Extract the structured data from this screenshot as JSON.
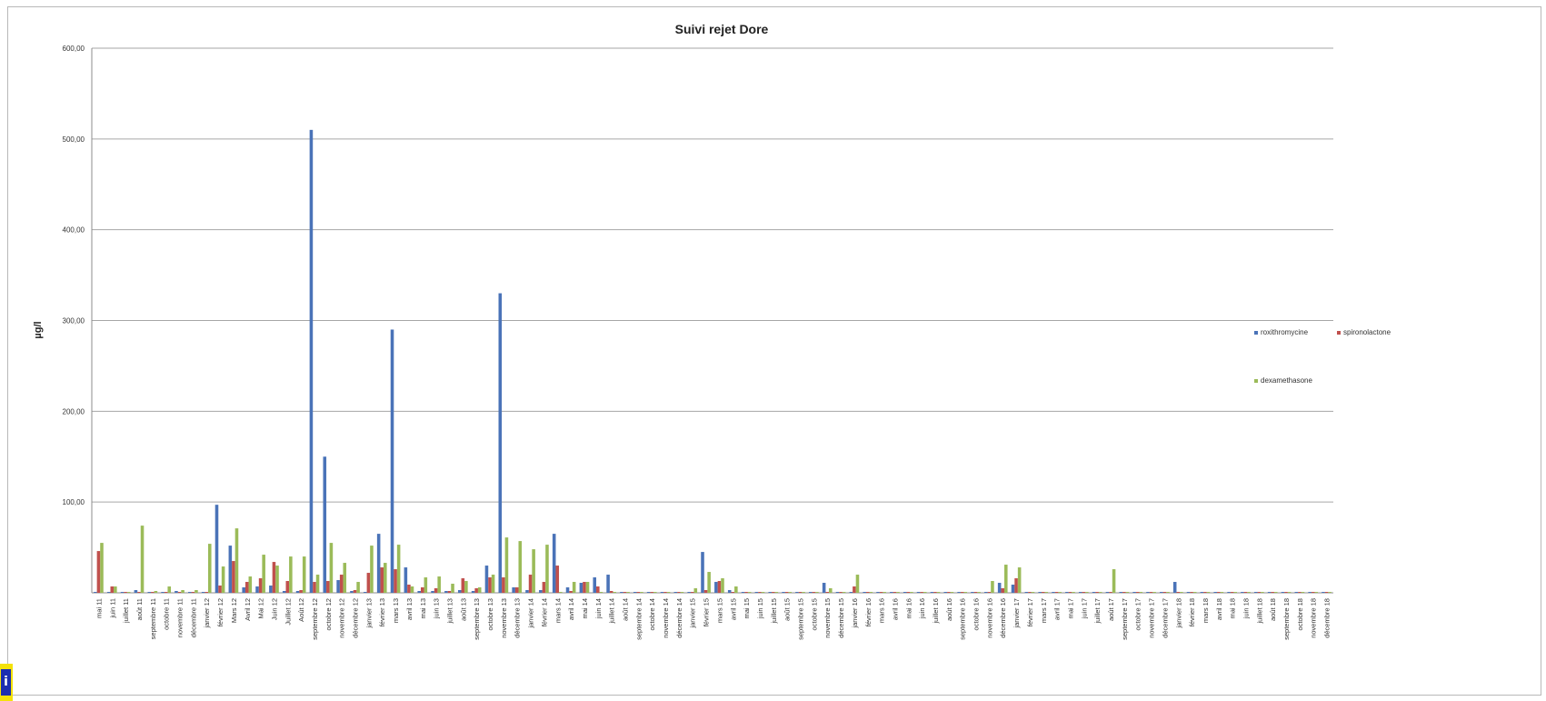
{
  "chart_data": {
    "type": "bar",
    "title": "Suivi rejet Dore",
    "ylabel": "µg/l",
    "xlabel": "",
    "ylim": [
      0,
      600
    ],
    "y_ticks": [
      "",
      "100,00",
      "200,00",
      "300,00",
      "400,00",
      "500,00",
      "600,00"
    ],
    "grid": true,
    "legend_position": "right",
    "categories": [
      "mai 11",
      "juin 11",
      "juillet 11",
      "août 11",
      "septembre 11",
      "octobre 11",
      "novembre 11",
      "décembre 11",
      "janvier 12",
      "février 12",
      "Mars 12",
      "Avril 12",
      "Mai 12",
      "Juin 12",
      "Juillet 12",
      "Août 12",
      "septembre 12",
      "octobre 12",
      "novembre 12",
      "décembre 12",
      "janvier 13",
      "février 13",
      "mars 13",
      "avril 13",
      "mai 13",
      "juin 13",
      "juillet 13",
      "août 13",
      "septembre 13",
      "octobre 13",
      "novembre 13",
      "décembre 13",
      "janvier 14",
      "février 14",
      "mars 14",
      "avril 14",
      "mai 14",
      "juin 14",
      "juillet 14",
      "août 14",
      "septembre 14",
      "octobre 14",
      "novembre 14",
      "décembre 14",
      "janvier 15",
      "février 15",
      "mars 15",
      "avril 15",
      "mai 15",
      "juin 15",
      "juillet 15",
      "août 15",
      "septembre 15",
      "octobre 15",
      "novembre 15",
      "décembre 15",
      "janvier 16",
      "février 16",
      "mars 16",
      "avril 16",
      "mai 16",
      "juin 16",
      "juillet 16",
      "août 16",
      "septembre 16",
      "octobre 16",
      "novembre 16",
      "décembre 16",
      "janvier 17",
      "février 17",
      "mars 17",
      "avril 17",
      "mai 17",
      "juin 17",
      "juillet 17",
      "août 17",
      "septembre 17",
      "octobre 17",
      "novembre 17",
      "décembre 17",
      "janvier 18",
      "février 18",
      "mars 18",
      "avril 18",
      "mai 18",
      "juin 18",
      "juillet 18",
      "août 18",
      "septembre 18",
      "octobre 18",
      "novembre 18",
      "décembre 18"
    ],
    "series": [
      {
        "name": "roxithromycine",
        "color": "#4a73b8",
        "values": [
          1,
          1,
          1,
          3,
          1,
          1,
          2,
          1,
          1,
          97,
          52,
          6,
          7,
          8,
          2,
          2,
          510,
          150,
          14,
          2,
          1,
          65,
          290,
          28,
          2,
          2,
          2,
          3,
          2,
          30,
          330,
          6,
          3,
          3,
          65,
          6,
          11,
          17,
          20,
          1,
          1,
          1,
          1,
          1,
          1,
          45,
          12,
          3,
          1,
          1,
          1,
          1,
          1,
          1,
          11,
          1,
          1,
          1,
          1,
          1,
          1,
          1,
          1,
          1,
          1,
          1,
          1,
          11,
          9,
          1,
          1,
          1,
          1,
          1,
          1,
          1,
          1,
          1,
          1,
          1,
          12,
          1,
          1,
          1,
          1,
          1,
          1,
          1,
          1,
          1,
          1,
          1
        ]
      },
      {
        "name": "spironolactone",
        "color": "#c0504d",
        "values": [
          46,
          7,
          1,
          1,
          1,
          1,
          1,
          1,
          1,
          8,
          35,
          12,
          16,
          34,
          13,
          3,
          12,
          13,
          20,
          3,
          22,
          28,
          26,
          9,
          6,
          5,
          2,
          16,
          5,
          17,
          17,
          6,
          20,
          12,
          30,
          2,
          12,
          7,
          2,
          1,
          1,
          1,
          1,
          1,
          1,
          3,
          13,
          1,
          1,
          1,
          1,
          1,
          1,
          1,
          1,
          1,
          7,
          1,
          1,
          1,
          1,
          1,
          1,
          1,
          1,
          1,
          1,
          5,
          16,
          1,
          1,
          1,
          1,
          1,
          1,
          1,
          1,
          1,
          1,
          1,
          1,
          1,
          1,
          1,
          1,
          1,
          1,
          1,
          1,
          1,
          1,
          1
        ]
      },
      {
        "name": "dexamethasone",
        "color": "#9bbb59",
        "values": [
          55,
          7,
          1,
          74,
          2,
          7,
          3,
          3,
          54,
          29,
          71,
          18,
          42,
          30,
          40,
          40,
          20,
          55,
          33,
          12,
          52,
          33,
          53,
          7,
          17,
          18,
          10,
          13,
          6,
          20,
          61,
          57,
          48,
          53,
          1,
          12,
          12,
          1,
          1,
          1,
          1,
          1,
          1,
          1,
          5,
          23,
          16,
          7,
          1,
          1,
          1,
          1,
          1,
          1,
          5,
          1,
          20,
          1,
          1,
          1,
          1,
          1,
          1,
          1,
          1,
          1,
          13,
          31,
          28,
          1,
          1,
          1,
          1,
          1,
          1,
          26,
          1,
          1,
          1,
          1,
          1,
          1,
          1,
          1,
          1,
          1,
          1,
          1,
          1,
          1,
          1,
          1
        ]
      }
    ]
  }
}
